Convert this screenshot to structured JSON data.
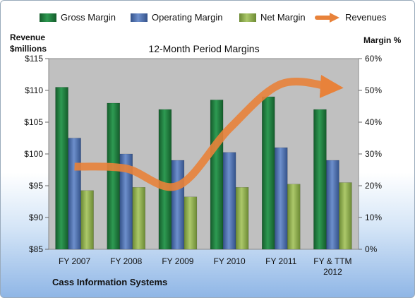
{
  "chart_data": {
    "type": "bar",
    "title": "12-Month Period Margins",
    "categories": [
      [
        "FY 2007"
      ],
      [
        "FY 2008"
      ],
      [
        "FY 2009"
      ],
      [
        "FY 2010"
      ],
      [
        "FY 2011"
      ],
      [
        "FY & TTM",
        "2012"
      ]
    ],
    "series": [
      {
        "name": "Gross Margin",
        "axis": "right",
        "color": "#1e7a3c",
        "values": [
          51,
          46,
          44,
          47,
          48,
          44
        ]
      },
      {
        "name": "Operating Margin",
        "axis": "right",
        "color": "#4a6fb3",
        "values": [
          35,
          30,
          28,
          30.5,
          32,
          28
        ]
      },
      {
        "name": "Net Margin",
        "axis": "right",
        "color": "#8fb04c",
        "values": [
          18.5,
          19.5,
          16.5,
          19.5,
          20.5,
          21
        ]
      }
    ],
    "line_series": {
      "name": "Revenues",
      "axis": "left",
      "color": "#e8823a",
      "values": [
        98,
        97.7,
        95,
        104,
        111,
        110.5
      ]
    },
    "left_axis": {
      "title_lines": [
        "Revenue",
        "$millions"
      ],
      "ylim": [
        85,
        115
      ],
      "ticks": [
        "$85",
        "$90",
        "$95",
        "$100",
        "$105",
        "$110",
        "$115"
      ]
    },
    "right_axis": {
      "title": "Margin %",
      "ylim": [
        0,
        60
      ],
      "ticks": [
        "0%",
        "10%",
        "20%",
        "30%",
        "40%",
        "50%",
        "60%"
      ]
    },
    "legend": {
      "position": "top",
      "entries": [
        "Gross Margin",
        "Operating Margin",
        "Net Margin",
        "Revenues"
      ]
    },
    "grid": false,
    "plot_background": "#c0c0c0"
  },
  "footer_text": "Cass Information Systems"
}
